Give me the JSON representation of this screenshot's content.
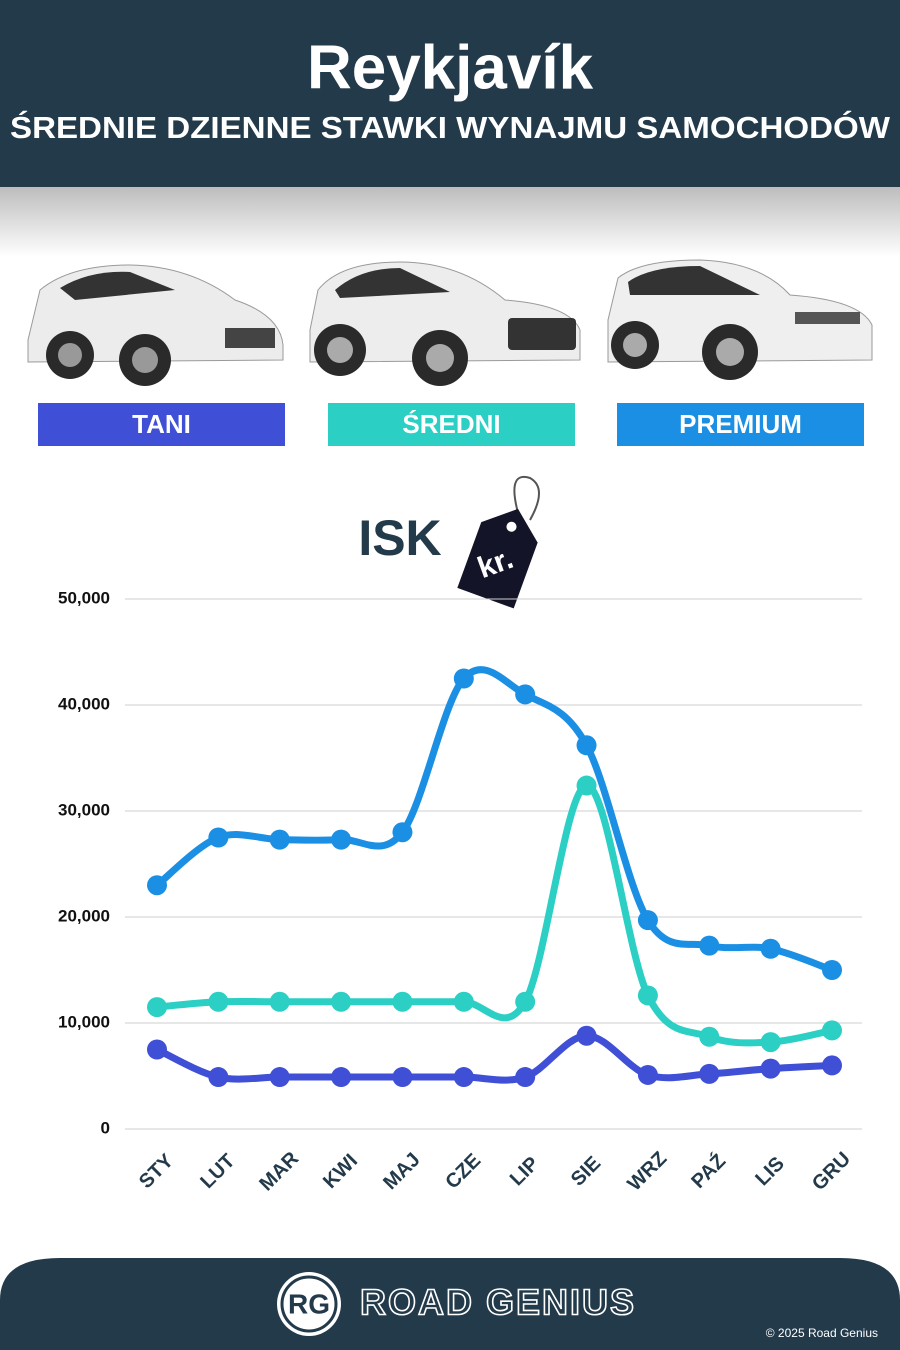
{
  "chart_data": {
    "type": "line",
    "title": "Reykjavík",
    "subtitle": "ŚREDNIE DZIENNE STAWKI WYNAJMU SAMOCHODÓW",
    "unit": "ISK",
    "unit_symbol": "kr.",
    "categories": [
      "STY",
      "LUT",
      "MAR",
      "KWI",
      "MAJ",
      "CZE",
      "LIP",
      "SIE",
      "WRZ",
      "PAŹ",
      "LIS",
      "GRU"
    ],
    "series": [
      {
        "name": "TANI",
        "color": "#3f4fd6",
        "values": [
          7500,
          4900,
          4900,
          4900,
          4900,
          4900,
          4900,
          8800,
          5100,
          5200,
          5700,
          6000
        ]
      },
      {
        "name": "ŚREDNI",
        "color": "#2bcfc4",
        "values": [
          11500,
          12000,
          12000,
          12000,
          12000,
          12000,
          12000,
          32400,
          12600,
          8700,
          8200,
          9300
        ]
      },
      {
        "name": "PREMIUM",
        "color": "#1a8fe3",
        "values": [
          23000,
          27500,
          27300,
          27300,
          28000,
          42500,
          41000,
          36200,
          19700,
          17300,
          17000,
          15000
        ]
      }
    ],
    "ylim": [
      0,
      50000
    ],
    "yticks": [
      0,
      {
        "value": 10000,
        "label": "10,000"
      },
      {
        "value": 20000,
        "label": "20,000"
      },
      {
        "value": 30000,
        "label": "30,000"
      },
      {
        "value": 40000,
        "label": "40,000"
      },
      {
        "value": 50000,
        "label": "50,000"
      }
    ],
    "grid": true
  },
  "footer": {
    "logo": "RG",
    "brand": "ROAD GENIUS",
    "copyright": "© 2025 Road Genius"
  }
}
